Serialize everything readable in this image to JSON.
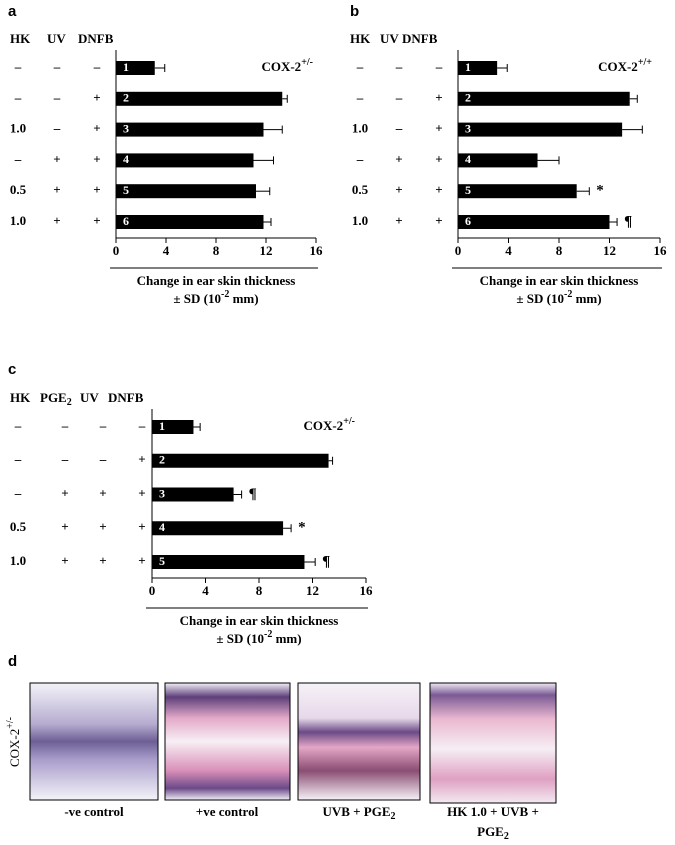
{
  "chart_data": [
    {
      "type": "barh",
      "panel": "a",
      "headers": [
        {
          "text": "HK"
        },
        {
          "text": "UV"
        },
        {
          "text": "DNFB"
        }
      ],
      "treatments": [
        [
          "–",
          "–",
          "–"
        ],
        [
          "–",
          "–",
          "+"
        ],
        [
          "1.0",
          "–",
          "+"
        ],
        [
          "–",
          "+",
          "+"
        ],
        [
          "0.5",
          "+",
          "+"
        ],
        [
          "1.0",
          "+",
          "+"
        ]
      ],
      "categories": [
        "1",
        "2",
        "3",
        "4",
        "5",
        "6"
      ],
      "values": [
        3.1,
        13.3,
        11.8,
        11.0,
        11.2,
        11.8
      ],
      "errors": [
        0.8,
        0.4,
        1.5,
        1.6,
        1.1,
        0.6
      ],
      "annotations": [
        null,
        null,
        null,
        null,
        null,
        null
      ],
      "genotype": {
        "text": "COX-2",
        "sup": "+/-"
      },
      "color": "#000000",
      "xlabel": [
        "Change in  ear skin thickness",
        {
          "text": "± SD (10",
          "sup": "-2",
          "after": " mm)"
        }
      ],
      "xlim": [
        0,
        16
      ],
      "xticks": [
        0,
        4,
        8,
        12,
        16
      ]
    },
    {
      "type": "barh",
      "panel": "b",
      "headers": [
        {
          "text": "HK"
        },
        {
          "text": "UV"
        },
        {
          "text": "DNFB"
        }
      ],
      "treatments": [
        [
          "–",
          "–",
          "–"
        ],
        [
          "–",
          "–",
          "+"
        ],
        [
          "1.0",
          "–",
          "+"
        ],
        [
          "–",
          "+",
          "+"
        ],
        [
          "0.5",
          "+",
          "+"
        ],
        [
          "1.0",
          "+",
          "+"
        ]
      ],
      "categories": [
        "1",
        "2",
        "3",
        "4",
        "5",
        "6"
      ],
      "values": [
        3.1,
        13.6,
        13.0,
        6.3,
        9.4,
        12.0
      ],
      "errors": [
        0.8,
        0.6,
        1.6,
        1.7,
        1.0,
        0.6
      ],
      "annotations": [
        null,
        null,
        null,
        null,
        "*",
        "¶"
      ],
      "genotype": {
        "text": "COX-2",
        "sup": "+/+"
      },
      "color": "#000000",
      "xlabel": [
        "Change in  ear skin thickness",
        {
          "text": "± SD (10",
          "sup": "-2",
          "after": " mm)"
        }
      ],
      "xlim": [
        0,
        16
      ],
      "xticks": [
        0,
        4,
        8,
        12,
        16
      ]
    },
    {
      "type": "barh",
      "panel": "c",
      "headers": [
        {
          "text": "HK"
        },
        {
          "text": "PGE",
          "sub": "2"
        },
        {
          "text": "UV"
        },
        {
          "text": "DNFB"
        }
      ],
      "treatments": [
        [
          "–",
          "–",
          "–",
          "–"
        ],
        [
          "–",
          "–",
          "–",
          "+"
        ],
        [
          "–",
          "+",
          "+",
          "+"
        ],
        [
          "0.5",
          "+",
          "+",
          "+"
        ],
        [
          "1.0",
          "+",
          "+",
          "+"
        ]
      ],
      "categories": [
        "1",
        "2",
        "3",
        "4",
        "5"
      ],
      "values": [
        3.1,
        13.2,
        6.1,
        9.8,
        11.4
      ],
      "errors": [
        0.5,
        0.3,
        0.6,
        0.6,
        0.8
      ],
      "annotations": [
        null,
        null,
        "¶",
        "*",
        "¶"
      ],
      "genotype": {
        "text": "COX-2",
        "sup": "+/-"
      },
      "color": "#000000",
      "xlabel": [
        "Change in  ear skin thickness",
        {
          "text": "± SD (10",
          "sup": "-2",
          "after": " mm)"
        }
      ],
      "xlim": [
        0,
        16
      ],
      "xticks": [
        0,
        4,
        8,
        12,
        16
      ]
    }
  ],
  "panel_d": {
    "panel": "d",
    "genotype": {
      "text": "COX-2",
      "sup": "+/-"
    },
    "captions": [
      [
        "-ve control"
      ],
      [
        "+ve control"
      ],
      [
        {
          "text": "UVB + PGE",
          "sub": "2"
        }
      ],
      [
        "HK 1.0 + UVB +",
        {
          "text": "PGE",
          "sub": "2"
        }
      ]
    ]
  }
}
